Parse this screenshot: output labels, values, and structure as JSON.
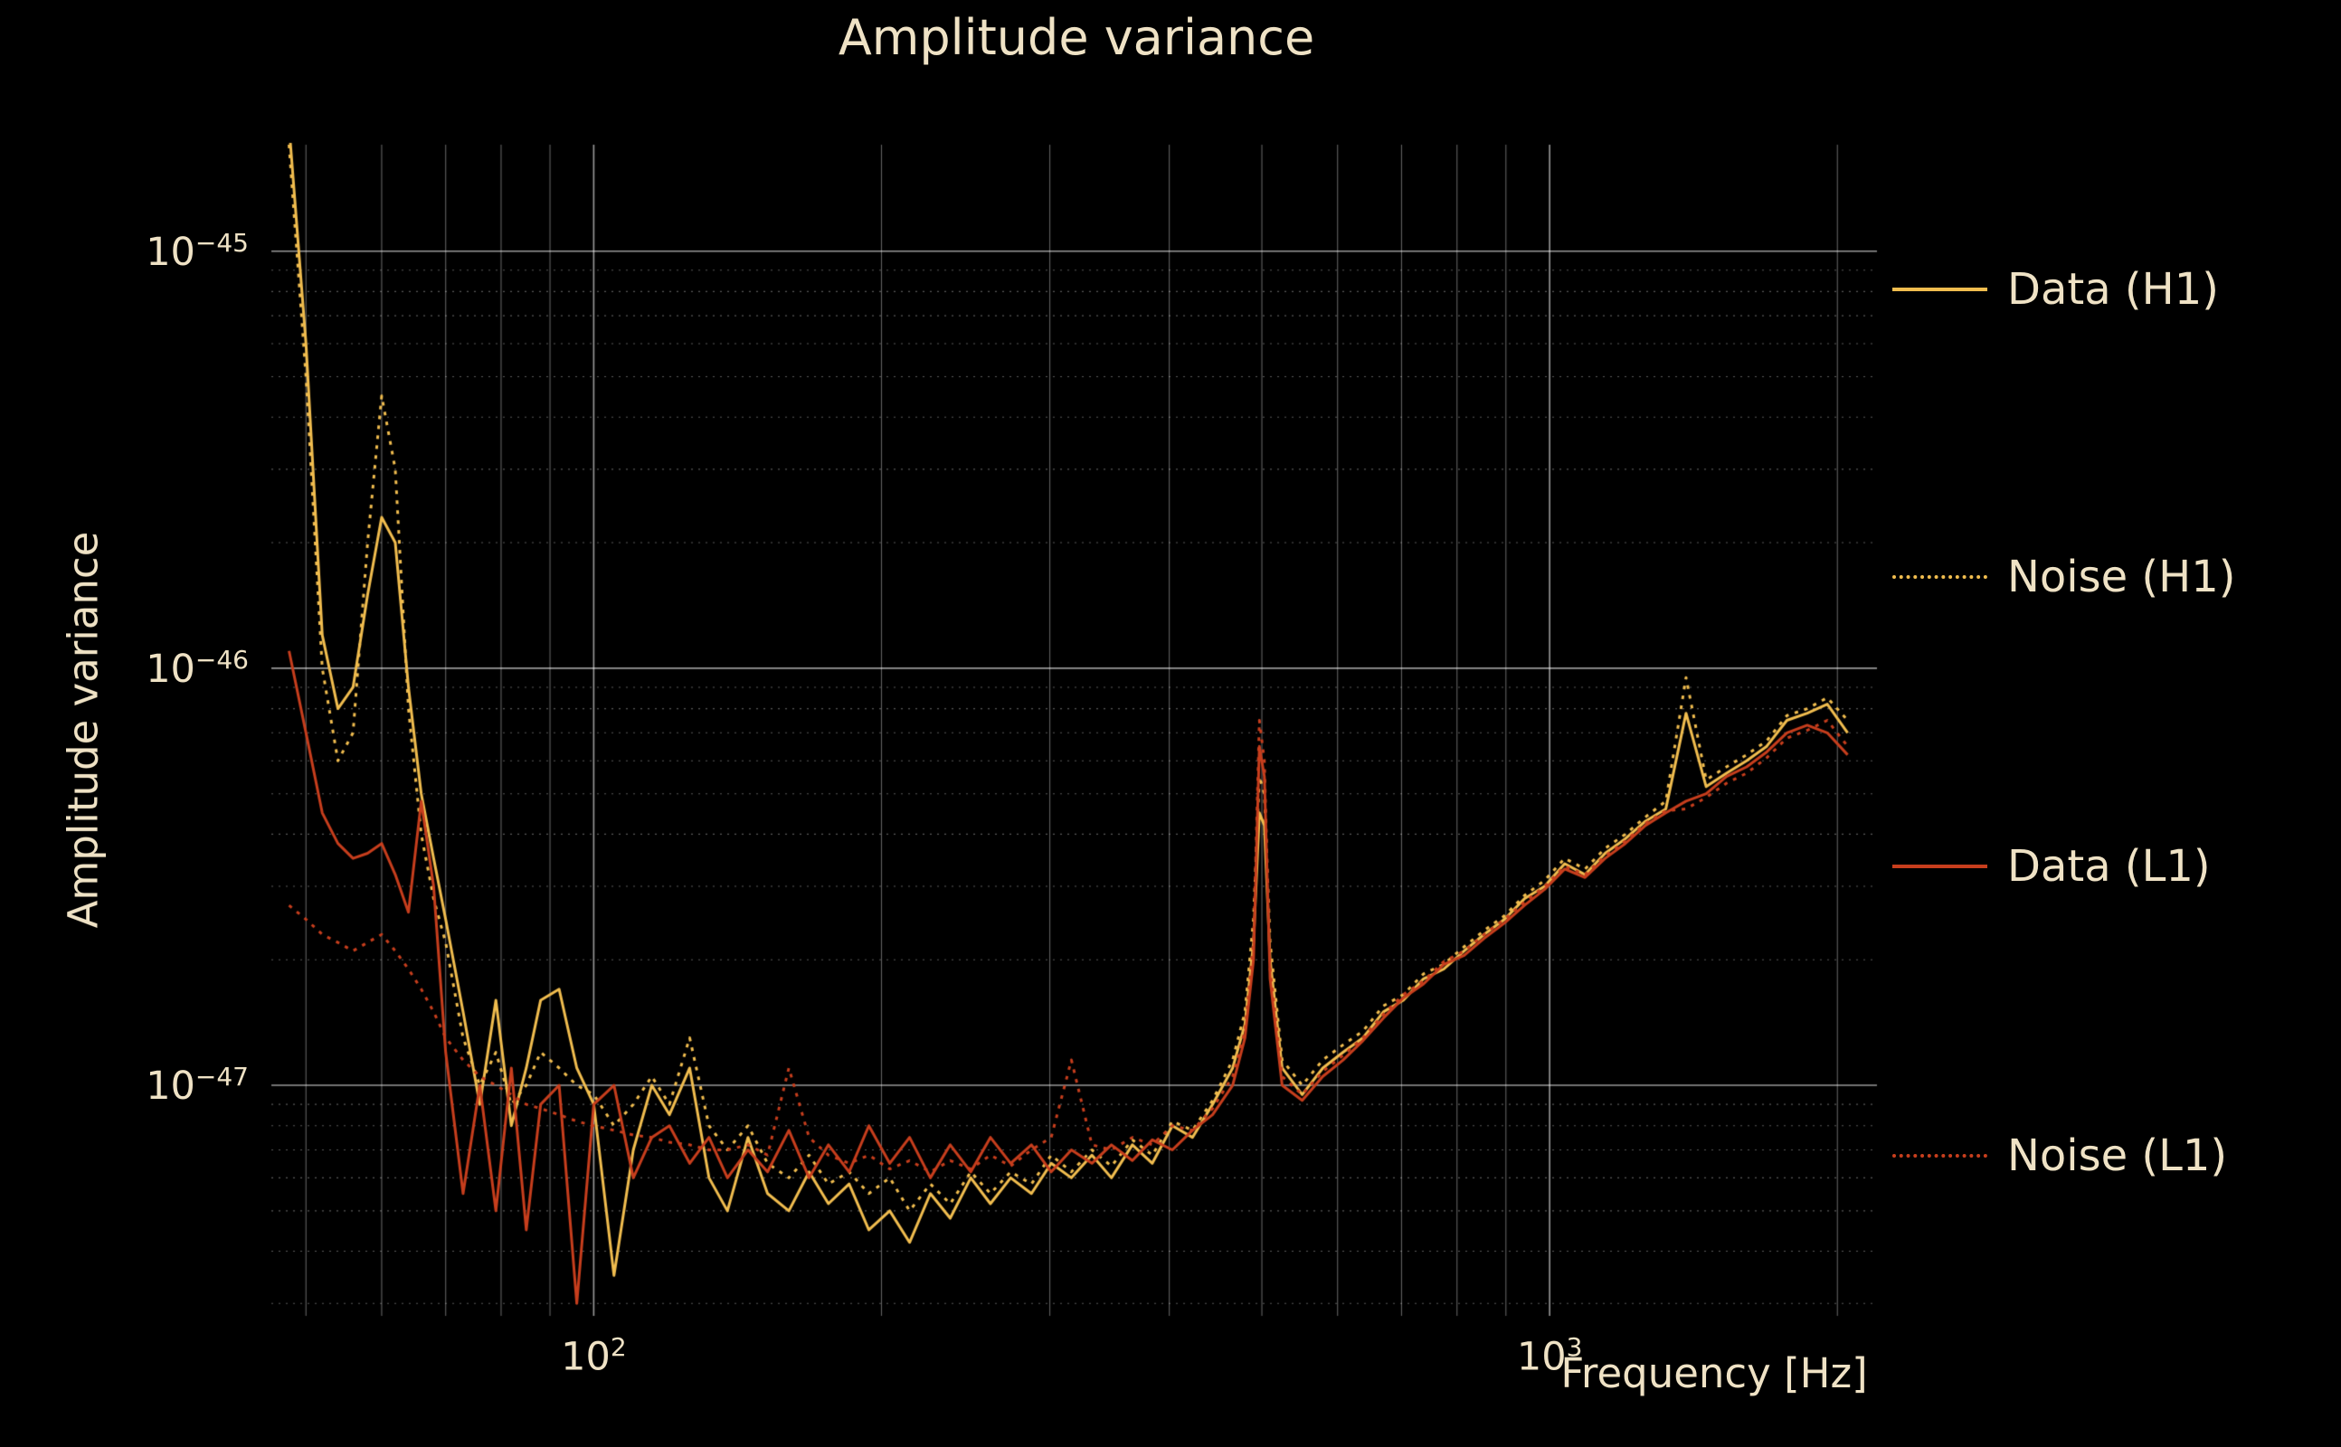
{
  "title": "Amplitude variance",
  "xlabel": "Frequency [Hz]",
  "ylabel": "Amplitude variance",
  "colors": {
    "background": "#000000",
    "text": "#efe2c5",
    "grid_major": "#ffffff",
    "grid_minor": "#d8d8d8",
    "h1": "#f1bd4f",
    "l1": "#c73e1d"
  },
  "axis": {
    "x_ticks": [
      {
        "value": 100,
        "base": "10",
        "exp": "2"
      },
      {
        "value": 1000,
        "base": "10",
        "exp": "3"
      }
    ],
    "y_ticks": [
      {
        "value": 1e-45,
        "base": "10",
        "exp": "−45"
      },
      {
        "value": 1e-46,
        "base": "10",
        "exp": "−46"
      },
      {
        "value": 1e-47,
        "base": "10",
        "exp": "−47"
      }
    ]
  },
  "legend": [
    {
      "label": "Data (H1)",
      "color": "#f1bd4f",
      "dash": "solid"
    },
    {
      "label": "Noise (H1)",
      "color": "#f1bd4f",
      "dash": "dotted"
    },
    {
      "label": "Data (L1)",
      "color": "#c73e1d",
      "dash": "solid"
    },
    {
      "label": "Noise (L1)",
      "color": "#c73e1d",
      "dash": "dotted"
    }
  ],
  "chart_data": {
    "type": "line",
    "title": "Amplitude variance",
    "xlabel": "Frequency [Hz]",
    "ylabel": "Amplitude variance",
    "xscale": "log",
    "yscale": "log",
    "xlim": [
      46,
      2200
    ],
    "ylim": [
      2.8e-48,
      1.8e-45
    ],
    "legend_position": "right",
    "grid": true,
    "scale": 1e-47,
    "x": [
      48,
      50,
      52,
      54,
      56,
      58,
      60,
      62,
      64,
      66,
      68,
      70,
      73,
      76,
      79,
      82,
      85,
      88,
      92,
      96,
      100,
      105,
      110,
      115,
      120,
      126,
      132,
      138,
      145,
      152,
      160,
      168,
      176,
      185,
      194,
      204,
      214,
      225,
      236,
      248,
      260,
      273,
      287,
      301,
      316,
      332,
      348,
      366,
      384,
      403,
      423,
      444,
      466,
      480,
      490,
      497,
      503,
      510,
      525,
      551,
      579,
      608,
      638,
      670,
      703,
      738,
      775,
      814,
      854,
      897,
      941,
      988,
      1037,
      1089,
      1143,
      1200,
      1260,
      1323,
      1389,
      1458,
      1531,
      1607,
      1687,
      1771,
      1860,
      1952,
      2050
    ],
    "series": [
      {
        "name": "Data (H1)",
        "color": "#f1bd4f",
        "dash": "solid",
        "values": [
          200,
          60,
          12,
          8,
          9,
          15,
          23,
          20,
          9,
          5,
          3.5,
          2.5,
          1.5,
          0.9,
          1.6,
          0.8,
          1.1,
          1.6,
          1.7,
          1.1,
          0.9,
          0.35,
          0.7,
          1.0,
          0.85,
          1.1,
          0.6,
          0.5,
          0.75,
          0.55,
          0.5,
          0.62,
          0.52,
          0.58,
          0.45,
          0.5,
          0.42,
          0.55,
          0.48,
          0.6,
          0.52,
          0.6,
          0.55,
          0.65,
          0.6,
          0.68,
          0.6,
          0.72,
          0.65,
          0.8,
          0.75,
          0.9,
          1.1,
          1.4,
          2.2,
          4.5,
          4.2,
          2.0,
          1.1,
          0.95,
          1.1,
          1.2,
          1.3,
          1.5,
          1.6,
          1.8,
          1.9,
          2.1,
          2.3,
          2.5,
          2.8,
          3.0,
          3.4,
          3.2,
          3.6,
          3.9,
          4.3,
          4.6,
          7.8,
          5.2,
          5.6,
          6.0,
          6.5,
          7.5,
          7.8,
          8.2,
          7.0
        ]
      },
      {
        "name": "Noise (H1)",
        "color": "#f1bd4f",
        "dash": "dotted",
        "values": [
          180,
          50,
          10,
          6,
          7,
          20,
          45,
          30,
          8,
          4,
          2.8,
          2.2,
          1.3,
          1.0,
          1.2,
          0.9,
          1.0,
          1.2,
          1.1,
          1.0,
          0.95,
          0.8,
          0.9,
          1.05,
          0.9,
          1.3,
          0.8,
          0.7,
          0.8,
          0.65,
          0.6,
          0.68,
          0.58,
          0.62,
          0.55,
          0.6,
          0.5,
          0.58,
          0.52,
          0.62,
          0.55,
          0.62,
          0.58,
          0.68,
          0.62,
          0.7,
          0.64,
          0.74,
          0.68,
          0.82,
          0.78,
          0.92,
          1.15,
          1.5,
          2.5,
          5.5,
          5.0,
          2.2,
          1.15,
          1.0,
          1.15,
          1.25,
          1.35,
          1.55,
          1.65,
          1.85,
          1.95,
          2.15,
          2.35,
          2.55,
          2.85,
          3.1,
          3.5,
          3.3,
          3.7,
          4.0,
          4.4,
          4.8,
          9.5,
          5.4,
          5.8,
          6.2,
          6.7,
          7.7,
          8.0,
          8.5,
          7.5
        ]
      },
      {
        "name": "Data (L1)",
        "color": "#c73e1d",
        "dash": "solid",
        "values": [
          11,
          7,
          4.5,
          3.8,
          3.5,
          3.6,
          3.8,
          3.2,
          2.6,
          4.8,
          3.0,
          1.2,
          0.55,
          1.0,
          0.5,
          1.1,
          0.45,
          0.9,
          1.0,
          0.3,
          0.9,
          1.0,
          0.6,
          0.75,
          0.8,
          0.65,
          0.75,
          0.6,
          0.7,
          0.62,
          0.78,
          0.6,
          0.72,
          0.62,
          0.8,
          0.65,
          0.75,
          0.6,
          0.72,
          0.62,
          0.75,
          0.65,
          0.72,
          0.62,
          0.7,
          0.65,
          0.72,
          0.66,
          0.74,
          0.7,
          0.78,
          0.85,
          1.0,
          1.3,
          2.0,
          6.5,
          5.5,
          1.8,
          1.0,
          0.92,
          1.05,
          1.15,
          1.28,
          1.45,
          1.62,
          1.75,
          1.95,
          2.05,
          2.25,
          2.45,
          2.7,
          2.95,
          3.3,
          3.15,
          3.5,
          3.8,
          4.2,
          4.5,
          4.8,
          5.0,
          5.5,
          5.8,
          6.3,
          7.0,
          7.3,
          7.0,
          6.2
        ]
      },
      {
        "name": "Noise (L1)",
        "color": "#c73e1d",
        "dash": "dotted",
        "values": [
          2.7,
          2.5,
          2.3,
          2.2,
          2.1,
          2.2,
          2.3,
          2.1,
          1.9,
          1.7,
          1.5,
          1.3,
          1.15,
          1.05,
          1.0,
          0.95,
          0.9,
          0.88,
          0.85,
          0.82,
          0.8,
          0.78,
          0.76,
          0.75,
          0.73,
          0.72,
          0.7,
          0.7,
          0.72,
          0.68,
          1.1,
          0.75,
          0.68,
          0.65,
          0.68,
          0.63,
          0.66,
          0.62,
          0.66,
          0.63,
          0.68,
          0.64,
          0.7,
          0.75,
          1.15,
          0.72,
          0.7,
          0.75,
          0.72,
          0.8,
          0.78,
          0.88,
          1.05,
          1.35,
          2.2,
          7.5,
          6.0,
          1.9,
          1.05,
          0.95,
          1.08,
          1.18,
          1.3,
          1.48,
          1.65,
          1.78,
          1.98,
          2.1,
          2.3,
          2.5,
          2.75,
          3.0,
          3.35,
          3.2,
          3.55,
          3.85,
          4.25,
          4.55,
          4.6,
          4.9,
          5.3,
          5.6,
          6.1,
          6.8,
          7.1,
          7.5,
          6.5
        ]
      }
    ]
  }
}
